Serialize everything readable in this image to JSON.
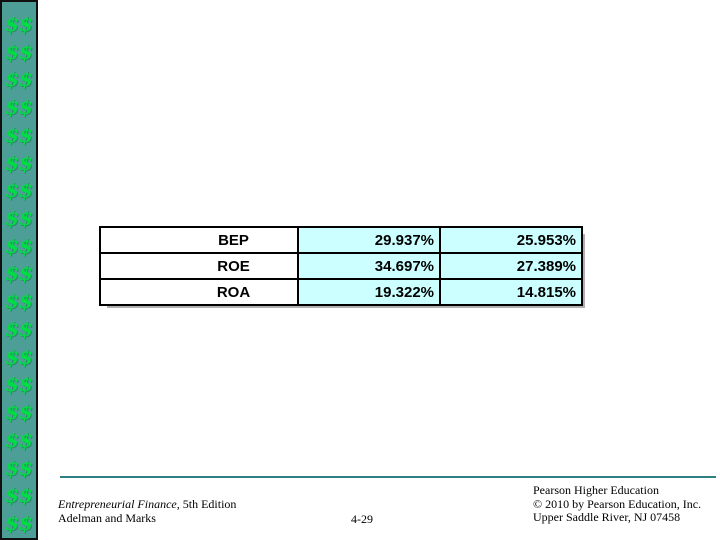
{
  "money_strip": {
    "symbol": "$$",
    "count": 19,
    "background": "#4D9E96",
    "symbol_color": "#00DD44"
  },
  "ratios_table": {
    "highlight_color": "#CCFFFF",
    "rows": [
      {
        "label": "BEP",
        "values": [
          "29.937%",
          "25.953%"
        ]
      },
      {
        "label": "ROE",
        "values": [
          "34.697%",
          "27.389%"
        ]
      },
      {
        "label": "ROA",
        "values": [
          "19.322%",
          "14.815%"
        ]
      }
    ]
  },
  "footer": {
    "divider_color": "#2E7F7F",
    "book_title_italic": "Entrepreneurial Finance,",
    "book_title_rest": " 5th Edition",
    "authors": "Adelman and Marks",
    "page_number": "4-29",
    "publisher_line1": "Pearson Higher Education",
    "publisher_line2": "© 2010 by Pearson Education, Inc.",
    "publisher_line3": "Upper Saddle River, NJ 07458"
  }
}
